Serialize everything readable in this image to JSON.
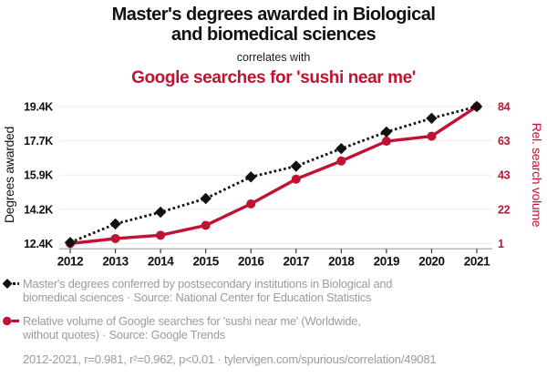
{
  "title": {
    "line1": "Master's degrees awarded in Biological",
    "line2": "and biomedical sciences"
  },
  "subtitle": "correlates with",
  "highlight_title": "Google searches for 'sushi near me'",
  "colors": {
    "accent_red": "#c01334",
    "text_black": "#111111",
    "muted_gray": "#9b9b9b",
    "gridline": "#ebebeb",
    "axis_line": "#9f9f9f"
  },
  "legend": {
    "items": [
      {
        "marker": "black-diamond-dashed-line",
        "line1": "Master's degrees conferred by postsecondary institutions in Biological and",
        "line2": "biomedical sciences · Source: National Center for Education Statistics"
      },
      {
        "marker": "red-circle-solid-line",
        "line1": "Relative volume of Google searches for 'sushi near me' (Worldwide,",
        "line2": "without quotes) · Source: Google Trends"
      }
    ]
  },
  "footer": "2012-2021, r=0.981, r²=0.962, p<0.01 · tylervigen.com/spurious/correlation/49081",
  "chart_data": {
    "type": "line",
    "x": [
      2012,
      2013,
      2014,
      2015,
      2016,
      2017,
      2018,
      2019,
      2020,
      2021
    ],
    "series": [
      {
        "name": "Master's degrees conferred in Biological and biomedical sciences",
        "axis": "left",
        "color": "#111111",
        "marker": "diamond",
        "dashed": true,
        "values": [
          12450,
          13400,
          14000,
          14700,
          15800,
          16350,
          17250,
          18100,
          18800,
          19400
        ]
      },
      {
        "name": "Relative volume of Google searches for 'sushi near me'",
        "axis": "right",
        "color": "#c01334",
        "marker": "circle",
        "dashed": false,
        "values": [
          1,
          4,
          6,
          12,
          25,
          40,
          51,
          63,
          66,
          84
        ]
      }
    ],
    "left_axis": {
      "label": "Degrees awarded",
      "ticks": [
        "12.4K",
        "14.2K",
        "15.9K",
        "17.7K",
        "19.4K"
      ],
      "min": 12400,
      "max": 19400
    },
    "right_axis": {
      "label": "Rel. search volume",
      "ticks": [
        "1",
        "22",
        "43",
        "63",
        "84"
      ],
      "min": 1,
      "max": 84
    },
    "grid": "horizontal",
    "legend_position": "bottom"
  }
}
